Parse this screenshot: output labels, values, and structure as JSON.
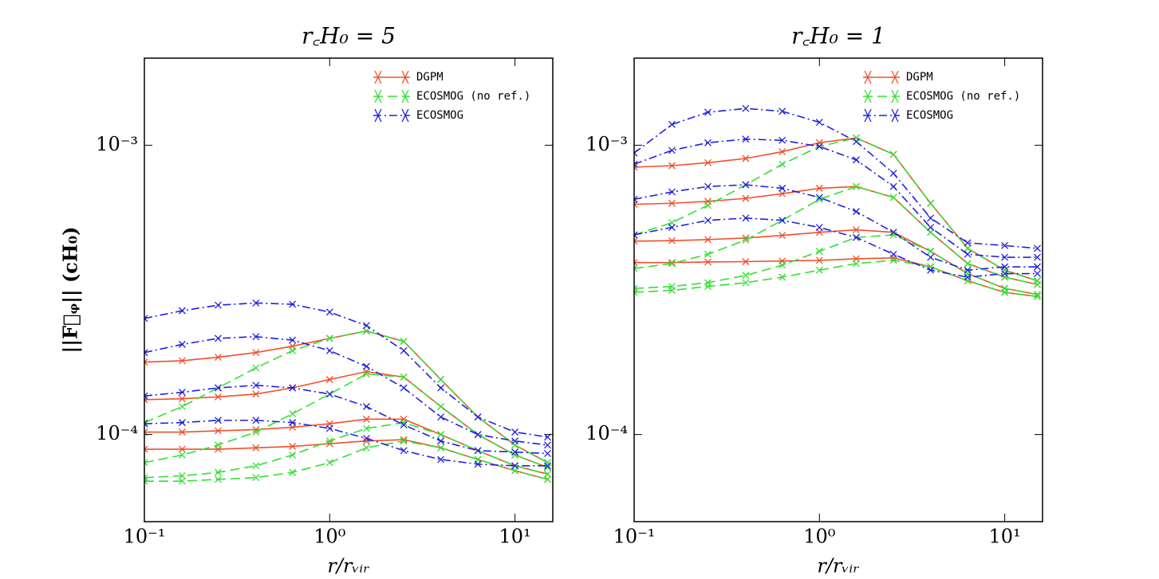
{
  "chart_data": [
    {
      "type": "line",
      "title": "r꜀H₀ = 5",
      "xlabel": "r/rᵥᵢᵣ",
      "ylabel": "||F⃗ᵩ||  (cH₀)",
      "xscale": "log",
      "yscale": "log",
      "xlim": [
        0.1,
        16
      ],
      "ylim": [
        5e-05,
        0.002
      ],
      "xticks": [
        {
          "value": 0.1,
          "label": "10⁻¹"
        },
        {
          "value": 1,
          "label": "10⁰"
        },
        {
          "value": 10,
          "label": "10¹"
        }
      ],
      "yticks": [
        {
          "value": 0.0001,
          "label": "10⁻⁴"
        },
        {
          "value": 0.001,
          "label": "10⁻³"
        }
      ],
      "legend": "upper right",
      "x": [
        0.1,
        0.16,
        0.25,
        0.4,
        0.63,
        1,
        1.58,
        2.51,
        3.98,
        6.31,
        10,
        15
      ],
      "series": [
        {
          "name": "DGPM",
          "color": "#f0502a",
          "linestyle": "solid",
          "values": [
            [
              0.000178,
              0.00018,
              0.000185,
              0.000192,
              0.000202,
              0.000215,
              0.000228,
              0.00021,
              0.000155,
              0.000115,
              9.2e-05,
              8e-05
            ],
            [
              0.000132,
              0.000133,
              0.000135,
              0.000138,
              0.000145,
              0.000155,
              0.000165,
              0.000158,
              0.000125,
              0.0001,
              8.5e-05,
              7.7e-05
            ],
            [
              0.000102,
              0.000102,
              0.000103,
              0.000104,
              0.000106,
              0.000109,
              0.000113,
              0.000113,
              0.0001,
              8.8e-05,
              7.8e-05,
              7.3e-05
            ],
            [
              8.9e-05,
              8.9e-05,
              8.9e-05,
              9e-05,
              9.1e-05,
              9.3e-05,
              9.5e-05,
              9.6e-05,
              9e-05,
              8.2e-05,
              7.5e-05,
              7e-05
            ]
          ]
        },
        {
          "name": "ECOSMOG (no ref.)",
          "color": "#33e033",
          "linestyle": "dashed",
          "values": [
            [
              0.00011,
              0.000125,
              0.000145,
              0.00017,
              0.000195,
              0.000215,
              0.000228,
              0.00021,
              0.000155,
              0.000115,
              9.2e-05,
              8e-05
            ],
            [
              8e-05,
              8.5e-05,
              9.2e-05,
              0.000102,
              0.000118,
              0.000138,
              0.000162,
              0.000158,
              0.000125,
              0.0001,
              8.5e-05,
              7.7e-05
            ],
            [
              7.1e-05,
              7.2e-05,
              7.4e-05,
              7.8e-05,
              8.5e-05,
              9.5e-05,
              0.000105,
              0.00011,
              0.0001,
              8.8e-05,
              7.8e-05,
              7.3e-05
            ],
            [
              6.9e-05,
              6.9e-05,
              7e-05,
              7.1e-05,
              7.4e-05,
              8e-05,
              9e-05,
              9.5e-05,
              9e-05,
              8.2e-05,
              7.5e-05,
              7e-05
            ]
          ]
        },
        {
          "name": "ECOSMOG",
          "color": "#2020e0",
          "linestyle": "dashdot",
          "values": [
            [
              0.000252,
              0.000268,
              0.00028,
              0.000285,
              0.000282,
              0.000265,
              0.000238,
              0.000195,
              0.000145,
              0.000115,
              0.000102,
              9.8e-05
            ],
            [
              0.000192,
              0.000205,
              0.000215,
              0.000218,
              0.000212,
              0.000195,
              0.000172,
              0.000145,
              0.000115,
              0.0001,
              9.5e-05,
              9.2e-05
            ],
            [
              0.000136,
              0.00014,
              0.000145,
              0.000148,
              0.000145,
              0.000138,
              0.000125,
              0.000108,
              9.5e-05,
              8.8e-05,
              8.7e-05,
              8.6e-05
            ],
            [
              0.000109,
              0.00011,
              0.000112,
              0.000112,
              0.00011,
              0.000105,
              9.7e-05,
              8.8e-05,
              8.2e-05,
              7.9e-05,
              7.8e-05,
              7.8e-05
            ]
          ]
        }
      ]
    },
    {
      "type": "line",
      "title": "r꜀H₀ = 1",
      "xlabel": "r/rᵥᵢᵣ",
      "xscale": "log",
      "yscale": "log",
      "xlim": [
        0.1,
        16
      ],
      "ylim": [
        5e-05,
        0.002
      ],
      "xticks": [
        {
          "value": 0.1,
          "label": "10⁻¹"
        },
        {
          "value": 1,
          "label": "10⁰"
        },
        {
          "value": 10,
          "label": "10¹"
        }
      ],
      "yticks": [
        {
          "value": 0.0001,
          "label": "10⁻⁴"
        },
        {
          "value": 0.001,
          "label": "10⁻³"
        }
      ],
      "legend": "upper right",
      "x": [
        0.1,
        0.16,
        0.25,
        0.4,
        0.63,
        1,
        1.58,
        2.51,
        3.98,
        6.31,
        10,
        15
      ],
      "series": [
        {
          "name": "DGPM",
          "color": "#f0502a",
          "linestyle": "solid",
          "values": [
            [
              0.00084,
              0.00085,
              0.00087,
              0.0009,
              0.00095,
              0.00102,
              0.00106,
              0.00093,
              0.00063,
              0.00044,
              0.00037,
              0.00034
            ],
            [
              0.000625,
              0.00063,
              0.00064,
              0.000655,
              0.00068,
              0.00071,
              0.00072,
              0.00066,
              0.0005,
              0.00039,
              0.00035,
              0.00033
            ],
            [
              0.000466,
              0.000468,
              0.000472,
              0.000478,
              0.000488,
              0.0005,
              0.00051,
              0.0005,
              0.00043,
              0.00036,
              0.00032,
              0.000305
            ],
            [
              0.000393,
              0.000393,
              0.000395,
              0.000396,
              0.000398,
              0.0004,
              0.000405,
              0.000408,
              0.00038,
              0.00034,
              0.00031,
              0.0003
            ]
          ]
        },
        {
          "name": "ECOSMOG (no ref.)",
          "color": "#33e033",
          "linestyle": "dashed",
          "values": [
            [
              0.00049,
              0.00054,
              0.00062,
              0.00073,
              0.00086,
              0.00099,
              0.00106,
              0.00093,
              0.00063,
              0.00044,
              0.00037,
              0.00034
            ],
            [
              0.000375,
              0.00039,
              0.00042,
              0.00047,
              0.00055,
              0.00065,
              0.00072,
              0.00066,
              0.0005,
              0.00039,
              0.00035,
              0.00033
            ],
            [
              0.00032,
              0.000325,
              0.000335,
              0.000355,
              0.000385,
              0.00043,
              0.00048,
              0.00049,
              0.00043,
              0.00036,
              0.00032,
              0.000305
            ],
            [
              0.00031,
              0.000315,
              0.000325,
              0.000335,
              0.00035,
              0.00037,
              0.00039,
              0.0004,
              0.00038,
              0.00034,
              0.00031,
              0.0003
            ]
          ]
        },
        {
          "name": "ECOSMOG",
          "color": "#2020e0",
          "linestyle": "dashdot",
          "values": [
            [
              0.00094,
              0.00118,
              0.0013,
              0.00134,
              0.00131,
              0.0012,
              0.00103,
              0.0008,
              0.00056,
              0.00046,
              0.00045,
              0.00044
            ],
            [
              0.00086,
              0.00096,
              0.00102,
              0.00105,
              0.00104,
              0.00099,
              0.00089,
              0.00072,
              0.00052,
              0.00042,
              0.00041,
              0.00041
            ],
            [
              0.00065,
              0.00069,
              0.00072,
              0.00073,
              0.00071,
              0.00066,
              0.00059,
              0.0005,
              0.00041,
              0.00037,
              0.00038,
              0.00038
            ],
            [
              0.00049,
              0.00052,
              0.00055,
              0.00056,
              0.00055,
              0.00052,
              0.00048,
              0.00042,
              0.00037,
              0.00035,
              0.00036,
              0.00036
            ]
          ]
        }
      ]
    }
  ]
}
